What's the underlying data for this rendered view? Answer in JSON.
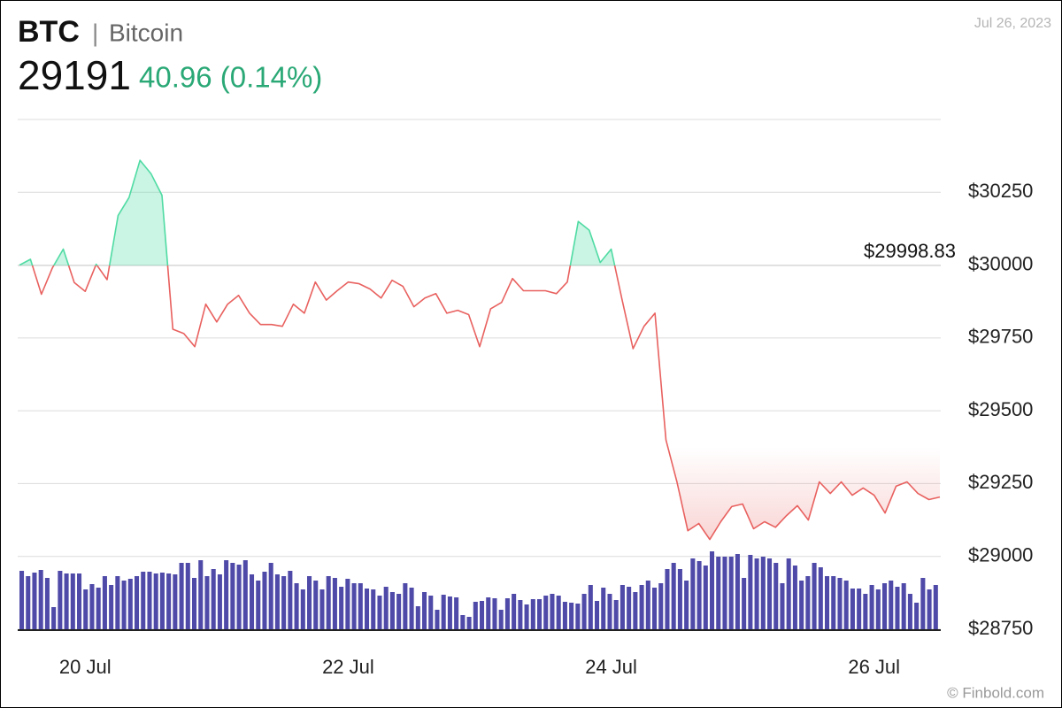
{
  "chart_data": [
    {
      "type": "line",
      "title": "BTC",
      "subtitle": "Bitcoin",
      "price": 29191,
      "change_label": "40.96 (0.14%)",
      "date": "Jul 26, 2023",
      "source": "© Finbold.com",
      "series": [
        {
          "name": "BTC",
          "color": "#e8615f",
          "color_up": "#4fdba3",
          "values": [
            30000,
            30020,
            29900,
            29990,
            30055,
            29940,
            29910,
            30003,
            29950,
            30170,
            30232,
            30360,
            30314,
            30240,
            29780,
            29765,
            29720,
            29866,
            29805,
            29866,
            29896,
            29835,
            29796,
            29796,
            29790,
            29866,
            29835,
            29942,
            29880,
            29912,
            29942,
            29936,
            29918,
            29887,
            29948,
            29927,
            29857,
            29887,
            29902,
            29835,
            29845,
            29830,
            29720,
            29850,
            29872,
            29954,
            29912,
            29912,
            29912,
            29902,
            29942,
            30150,
            30120,
            30009,
            30055,
            29880,
            29713,
            29790,
            29835,
            29400,
            29256,
            29088,
            29113,
            29058,
            29119,
            29171,
            29180,
            29095,
            29119,
            29100,
            29140,
            29174,
            29125,
            29256,
            29216,
            29256,
            29210,
            29235,
            29210,
            29149,
            29241,
            29256,
            29216,
            29195,
            29204
          ]
        }
      ],
      "baseline": {
        "value": 29998.83,
        "label": "$29998.83"
      },
      "xlim": [
        0,
        84
      ],
      "xticks": [
        {
          "value": 6,
          "label": "20 Jul"
        },
        {
          "value": 30,
          "label": "22 Jul"
        },
        {
          "value": 54,
          "label": "24 Jul"
        },
        {
          "value": 78,
          "label": "26 Jul"
        }
      ],
      "ylim": [
        28750,
        30500
      ],
      "yticks": [
        {
          "value": 28750,
          "label": "$28750"
        },
        {
          "value": 29000,
          "label": "$29000"
        },
        {
          "value": 29250,
          "label": "$29250"
        },
        {
          "value": 29500,
          "label": "$29500"
        },
        {
          "value": 29750,
          "label": "$29750"
        },
        {
          "value": 30000,
          "label": "$30000"
        },
        {
          "value": 30250,
          "label": "$30250"
        }
      ],
      "grid": true
    },
    {
      "type": "bar",
      "color": "#4f4aa8",
      "xlim": [
        0,
        144
      ],
      "ylim": [
        0,
        100
      ],
      "values": [
        66,
        60,
        64,
        67,
        58,
        25,
        66,
        63,
        63,
        63,
        45,
        51,
        47,
        60,
        50,
        60,
        55,
        57,
        60,
        65,
        65,
        63,
        64,
        63,
        62,
        75,
        75,
        58,
        78,
        60,
        68,
        62,
        78,
        75,
        73,
        78,
        62,
        55,
        65,
        75,
        62,
        60,
        66,
        52,
        45,
        60,
        55,
        45,
        60,
        58,
        48,
        57,
        52,
        52,
        46,
        45,
        38,
        48,
        42,
        40,
        52,
        47,
        26,
        42,
        38,
        22,
        39,
        37,
        36,
        16,
        14,
        31,
        32,
        36,
        35,
        22,
        35,
        40,
        33,
        28,
        34,
        34,
        38,
        40,
        38,
        31,
        30,
        29,
        40,
        50,
        32,
        47,
        40,
        33,
        50,
        48,
        42,
        50,
        55,
        47,
        52,
        68,
        75,
        68,
        55,
        80,
        77,
        72,
        88,
        82,
        82,
        82,
        85,
        58,
        84,
        80,
        82,
        80,
        75,
        52,
        80,
        72,
        55,
        60,
        75,
        70,
        60,
        60,
        58,
        55,
        46,
        46,
        40,
        50,
        45,
        52,
        55,
        48,
        52,
        40,
        30,
        58,
        45,
        50
      ]
    }
  ]
}
